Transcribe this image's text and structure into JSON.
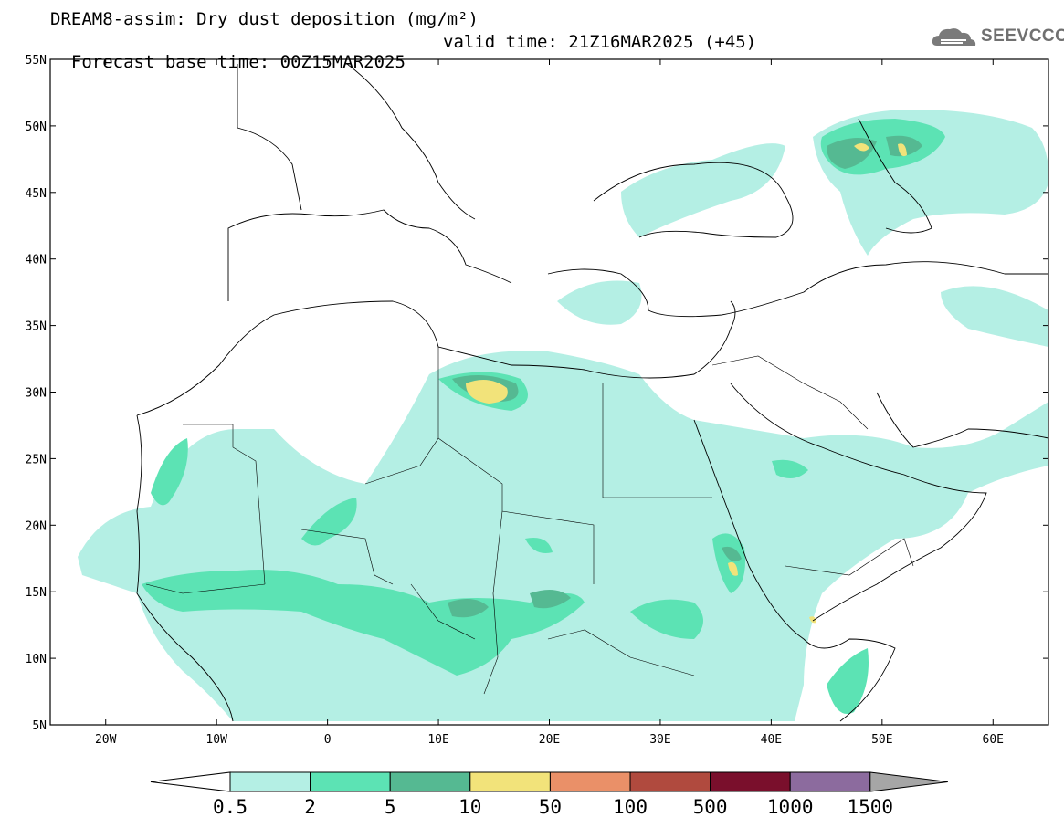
{
  "title": {
    "line1": "DREAM8-assim: Dry dust deposition (mg/m²)",
    "forecast_base": "Forecast base time: 00Z15MAR2025",
    "valid_time": "valid time: 21Z16MAR2025 (+45)"
  },
  "logo": {
    "text": "SEEVCCC",
    "icon": "cloud-logo-icon"
  },
  "map": {
    "lon_range": [
      -25,
      65
    ],
    "lat_range": [
      5,
      55
    ],
    "lat_ticks": [
      "55N",
      "50N",
      "45N",
      "40N",
      "35N",
      "30N",
      "25N",
      "20N",
      "15N",
      "10N",
      "5N"
    ],
    "lon_ticks": [
      "20W",
      "10W",
      "0",
      "10E",
      "20E",
      "30E",
      "40E",
      "50E",
      "60E"
    ]
  },
  "colorbar": {
    "labels": [
      "0.5",
      "2",
      "5",
      "10",
      "50",
      "100",
      "500",
      "1000",
      "1500"
    ],
    "colors": [
      "#b4efe4",
      "#5ce3b4",
      "#55b992",
      "#f2e37a",
      "#ea9068",
      "#b04a3e",
      "#7a0f2c",
      "#8c6b9e",
      "#a6a6a6"
    ]
  }
}
